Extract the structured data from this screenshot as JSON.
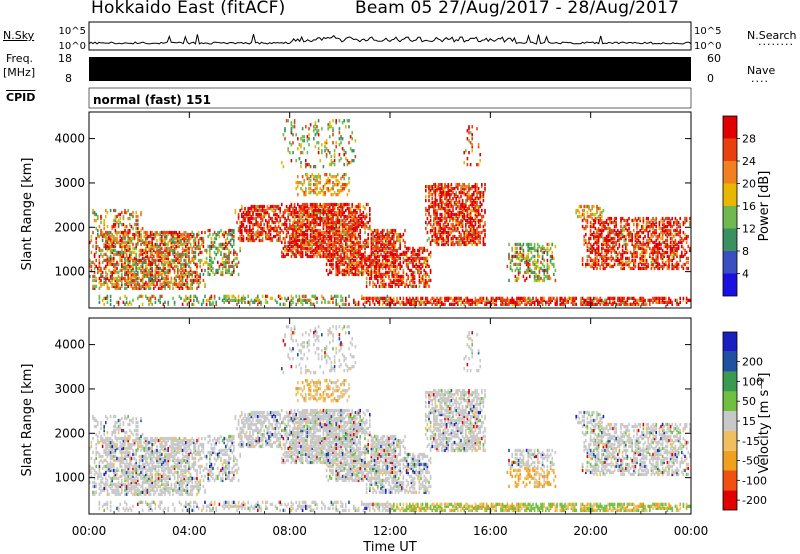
{
  "header": {
    "title": "Hokkaido East (fitACF)",
    "subtitle": "Beam 05  27/Aug/2017 - 28/Aug/2017"
  },
  "top_panels": {
    "nsky_label": "N.Sky",
    "nsearch_label": "N.Search",
    "noise_ticks": [
      "10^5",
      "10^0"
    ],
    "freq_label_1": "Freq.",
    "freq_label_2": "[MHz]",
    "freq_ticks": [
      "18",
      "8"
    ],
    "nave_label": "Nave",
    "nave_ticks": [
      "60",
      "0"
    ],
    "cpid_label": "CPID",
    "cpid_value": "normal (fast) 151"
  },
  "colors": {
    "power": [
      "#1a10e0",
      "#3a4fc0",
      "#3a9060",
      "#70b850",
      "#e8b800",
      "#f08020",
      "#e84010",
      "#e00000"
    ],
    "velocity": [
      "#e00000",
      "#f05010",
      "#f0a020",
      "#f0c060",
      "#c8c8c8",
      "#70c040",
      "#3a9a50",
      "#2050a0",
      "#1a20c0"
    ]
  },
  "chart_data": [
    {
      "type": "heatmap",
      "name": "power",
      "ylabel": "Slant Range [km]",
      "xlabel": "Time UT",
      "x_ticks": [
        "00:00",
        "04:00",
        "08:00",
        "12:00",
        "16:00",
        "20:00",
        "00:00"
      ],
      "y_ticks": [
        1000,
        2000,
        3000,
        4000
      ],
      "ylim": [
        180,
        4600
      ],
      "xlim_hours": [
        0,
        24
      ],
      "colorbar": {
        "label": "Power [dB]",
        "ticks": [
          4,
          8,
          12,
          16,
          20,
          24,
          28
        ]
      }
    },
    {
      "type": "heatmap",
      "name": "velocity",
      "ylabel": "Slant Range [km]",
      "xlabel": "Time UT",
      "x_ticks": [
        "00:00",
        "04:00",
        "08:00",
        "12:00",
        "16:00",
        "20:00",
        "00:00"
      ],
      "y_ticks": [
        1000,
        2000,
        3000,
        4000
      ],
      "ylim": [
        180,
        4600
      ],
      "xlim_hours": [
        0,
        24
      ],
      "colorbar": {
        "label": "Velocity [m s⁻¹]",
        "ticks": [
          "200",
          "100",
          "50",
          "15",
          "-15",
          "-50",
          "-100",
          "-200"
        ]
      }
    }
  ]
}
